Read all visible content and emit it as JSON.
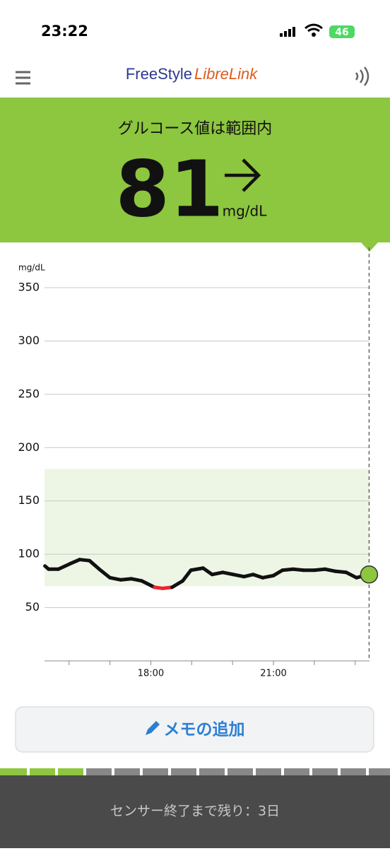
{
  "status_bar": {
    "time": "23:22",
    "battery": "46"
  },
  "header": {
    "brand_1": "FreeStyle",
    "brand_2": "LibreLink"
  },
  "banner": {
    "status": "グルコース値は範囲内",
    "value": 81,
    "unit": "mg/dL"
  },
  "chart_data": {
    "type": "line",
    "y_label": "mg/dL",
    "x": [
      15.41,
      15.5,
      15.74,
      16.02,
      16.26,
      16.5,
      16.74,
      17.0,
      17.26,
      17.52,
      17.78,
      18.09,
      18.29,
      18.52,
      18.78,
      18.98,
      19.28,
      19.5,
      19.76,
      20.02,
      20.28,
      20.5,
      20.74,
      21.0,
      21.22,
      21.48,
      21.74,
      22.0,
      22.26,
      22.52,
      22.78,
      23.03,
      23.34
    ],
    "values": [
      89,
      86,
      86,
      91,
      95,
      94,
      86,
      78,
      76,
      77,
      75,
      69,
      68,
      69,
      75,
      85,
      87,
      81,
      83,
      81,
      79,
      81,
      78,
      80,
      85,
      86,
      85,
      85,
      86,
      84,
      83,
      78,
      81
    ],
    "ylim": [
      0,
      350
    ],
    "yticks": [
      50,
      100,
      150,
      200,
      250,
      300,
      350
    ],
    "xlim": [
      15.4,
      23.35
    ],
    "xticks": [
      {
        "value": 18,
        "label": "18:00"
      },
      {
        "value": 21,
        "label": "21:00"
      }
    ],
    "minor_xticks": [
      16,
      17,
      19,
      20,
      22,
      23
    ],
    "target_range": [
      70,
      180
    ],
    "color": "#111111",
    "low_color": "#e8262e",
    "target_color": "#edf6e5",
    "current_color": "#8dc63f",
    "grid": true
  },
  "button": {
    "label": "メモの追加"
  },
  "footer": {
    "text": "センサー終了まで残り：3日"
  }
}
